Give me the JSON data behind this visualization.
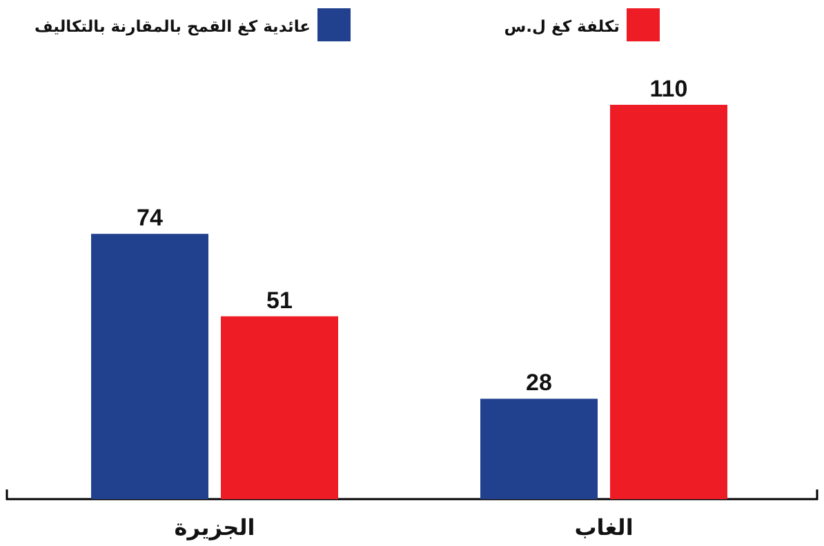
{
  "chart_data": {
    "type": "bar",
    "categories": [
      "الجزيرة",
      "الغاب"
    ],
    "series": [
      {
        "name": "عائدية كغ القمح بالمقارنة بالتكاليف",
        "color": "#21418e",
        "values": [
          74,
          28
        ]
      },
      {
        "name": "تكلفة كغ ل.س",
        "color": "#ee1c25",
        "values": [
          51,
          110
        ]
      }
    ],
    "data_labels": true,
    "legend": "top"
  }
}
